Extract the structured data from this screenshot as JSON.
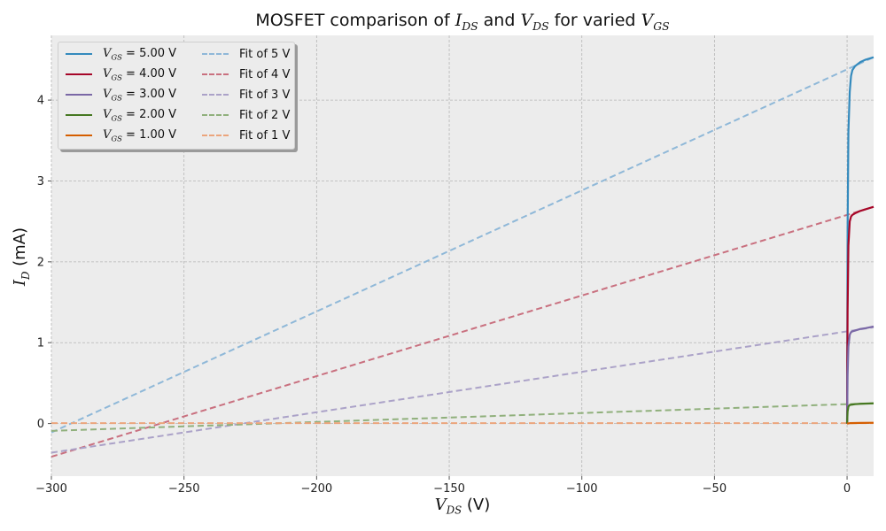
{
  "chart_data": {
    "type": "line",
    "title": {
      "prefix": "MOSFET comparison of ",
      "var1": "I",
      "var1_sub": "DS",
      "mid": " and ",
      "var2": "V",
      "var2_sub": "DS",
      "suffix": " for varied ",
      "var3": "V",
      "var3_sub": "GS"
    },
    "xlabel": {
      "var": "V",
      "sub": "DS",
      "unit": " (V)"
    },
    "ylabel": {
      "var": "I",
      "sub": "D",
      "unit": " (mA)"
    },
    "xlim": [
      -300,
      10
    ],
    "ylim": [
      -0.65,
      4.8
    ],
    "xticks": [
      -300,
      -250,
      -200,
      -150,
      -100,
      -50,
      0
    ],
    "xtick_labels": [
      "−300",
      "−250",
      "−200",
      "−150",
      "−100",
      "−50",
      "0"
    ],
    "yticks": [
      0,
      1,
      2,
      3,
      4
    ],
    "ytick_labels": [
      "0",
      "1",
      "2",
      "3",
      "4"
    ],
    "grid": true,
    "legend_placement": "top-left",
    "series": [
      {
        "name": "= 5.00 V",
        "sym": "V",
        "sub": "GS",
        "color": "#348ABD",
        "style": "solid",
        "x": [
          0,
          0.2,
          0.5,
          1,
          1.5,
          2,
          3,
          5,
          7,
          10
        ],
        "y": [
          0,
          2.4,
          3.6,
          4.1,
          4.3,
          4.37,
          4.42,
          4.47,
          4.5,
          4.53
        ]
      },
      {
        "name": "= 4.00 V",
        "sym": "V",
        "sub": "GS",
        "color": "#A60628",
        "style": "solid",
        "x": [
          0,
          0.2,
          0.5,
          1,
          1.5,
          2,
          3,
          5,
          7,
          10
        ],
        "y": [
          0,
          1.4,
          2.2,
          2.5,
          2.56,
          2.58,
          2.6,
          2.63,
          2.65,
          2.68
        ]
      },
      {
        "name": "= 3.00 V",
        "sym": "V",
        "sub": "GS",
        "color": "#7A68A6",
        "style": "solid",
        "x": [
          0,
          0.2,
          0.5,
          1,
          1.5,
          2,
          3,
          5,
          7,
          10
        ],
        "y": [
          0,
          0.6,
          0.95,
          1.1,
          1.13,
          1.14,
          1.15,
          1.17,
          1.18,
          1.2
        ]
      },
      {
        "name": "= 2.00 V",
        "sym": "V",
        "sub": "GS",
        "color": "#467821",
        "style": "solid",
        "x": [
          0,
          0.2,
          0.5,
          1,
          2,
          3,
          5,
          10
        ],
        "y": [
          0,
          0.15,
          0.21,
          0.23,
          0.235,
          0.24,
          0.245,
          0.25
        ]
      },
      {
        "name": "= 1.00 V",
        "sym": "V",
        "sub": "GS",
        "color": "#D55E00",
        "style": "solid",
        "x": [
          0,
          1,
          5,
          10
        ],
        "y": [
          0,
          0.005,
          0.008,
          0.01
        ]
      },
      {
        "name": "Fit of 5 V",
        "color": "#8FB8D8",
        "style": "dashed",
        "x": [
          -300,
          0,
          10
        ],
        "y": [
          -0.11,
          4.38,
          4.53
        ]
      },
      {
        "name": "Fit of 4 V",
        "color": "#C9707F",
        "style": "dashed",
        "x": [
          -300,
          0,
          10
        ],
        "y": [
          -0.41,
          2.58,
          2.68
        ]
      },
      {
        "name": "Fit of 3 V",
        "color": "#ABA2C8",
        "style": "dashed",
        "x": [
          -300,
          0,
          10
        ],
        "y": [
          -0.36,
          1.14,
          1.19
        ]
      },
      {
        "name": "Fit of 2 V",
        "color": "#90B07C",
        "style": "dashed",
        "x": [
          -300,
          0,
          10
        ],
        "y": [
          -0.09,
          0.24,
          0.25
        ]
      },
      {
        "name": "Fit of 1 V",
        "color": "#EBA57C",
        "style": "dashed",
        "x": [
          -300,
          0,
          10
        ],
        "y": [
          0.005,
          0.005,
          0.005
        ]
      }
    ]
  }
}
